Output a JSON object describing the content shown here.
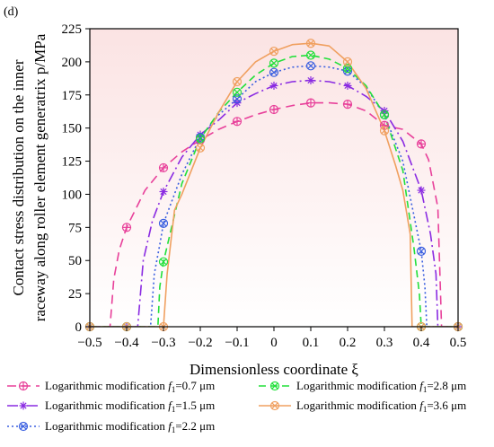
{
  "chart_data": {
    "type": "line",
    "panel_label": "(d)",
    "xlabel": "Dimensionless coordinate  ξ",
    "ylabel_line1": "Contact stress distribution on the inner",
    "ylabel_line2": "raceway along roller element generatrix  p/MPa",
    "xlim": [
      -0.5,
      0.5
    ],
    "ylim": [
      0,
      225
    ],
    "x_ticks": [
      -0.5,
      -0.4,
      -0.3,
      -0.2,
      -0.1,
      0,
      0.1,
      0.2,
      0.3,
      0.4,
      0.5
    ],
    "x_tick_labels": [
      "−0.5",
      "−0.4",
      "−0.3",
      "−0.2",
      "−0.1",
      "0",
      "0.1",
      "0.2",
      "0.3",
      "0.4",
      "0.5"
    ],
    "y_ticks": [
      0,
      25,
      50,
      75,
      100,
      125,
      150,
      175,
      200,
      225
    ],
    "y_tick_labels": [
      "0",
      "25",
      "50",
      "75",
      "100",
      "125",
      "150",
      "175",
      "200",
      "225"
    ],
    "background_gradient": [
      "#fbe3e3",
      "#ffffff"
    ],
    "series": [
      {
        "name": "Logarithmic modification f1=0.7 μm",
        "legend_prefix": "Logarithmic modification ",
        "legend_sym": "f",
        "legend_sub": "1",
        "legend_suffix": "=0.7 μm",
        "color": "#e8409a",
        "dash": "10,6",
        "marker": "circle-plus",
        "x": [
          -0.5,
          -0.445,
          -0.435,
          -0.42,
          -0.4,
          -0.35,
          -0.3,
          -0.25,
          -0.2,
          -0.15,
          -0.1,
          -0.05,
          0,
          0.05,
          0.1,
          0.15,
          0.2,
          0.25,
          0.3,
          0.35,
          0.4,
          0.42,
          0.445,
          0.455,
          0.5
        ],
        "y": [
          0,
          0,
          36,
          58,
          75,
          103,
          120,
          132,
          141,
          149,
          155,
          160,
          164,
          167,
          169,
          169,
          168,
          163,
          152,
          149,
          138,
          126,
          90,
          0,
          0
        ],
        "marker_x": [
          -0.5,
          -0.4,
          -0.3,
          -0.2,
          -0.1,
          0,
          0.1,
          0.2,
          0.3,
          0.4,
          0.5
        ],
        "marker_y": [
          0,
          75,
          120,
          141,
          155,
          164,
          169,
          168,
          152,
          138,
          0
        ]
      },
      {
        "name": "Logarithmic modification f1=1.5 μm",
        "legend_prefix": "Logarithmic modification ",
        "legend_sym": "f",
        "legend_sub": "1",
        "legend_suffix": "=1.5 μm",
        "color": "#8a2be2",
        "dash": "12,4,2,4",
        "marker": "asterisk",
        "x": [
          -0.5,
          -0.37,
          -0.355,
          -0.33,
          -0.3,
          -0.25,
          -0.2,
          -0.15,
          -0.1,
          -0.05,
          0,
          0.05,
          0.1,
          0.15,
          0.2,
          0.25,
          0.3,
          0.35,
          0.4,
          0.425,
          0.44,
          0.445,
          0.5
        ],
        "y": [
          0,
          0,
          50,
          80,
          102,
          128,
          145,
          156,
          169,
          176,
          182,
          185,
          186,
          185,
          182,
          174,
          163,
          140,
          103,
          70,
          40,
          0,
          0
        ],
        "marker_x": [
          -0.5,
          -0.4,
          -0.3,
          -0.2,
          -0.1,
          0,
          0.1,
          0.2,
          0.3,
          0.4,
          0.5
        ],
        "marker_y": [
          0,
          0,
          102,
          145,
          169,
          182,
          186,
          182,
          163,
          103,
          0
        ]
      },
      {
        "name": "Logarithmic modification f1=2.2 μm",
        "legend_prefix": "Logarithmic modification ",
        "legend_sym": "f",
        "legend_sub": "1",
        "legend_suffix": "=2.2 μm",
        "color": "#3a5fe0",
        "dash": "2,3",
        "marker": "circle-x",
        "x": [
          -0.5,
          -0.335,
          -0.325,
          -0.31,
          -0.3,
          -0.25,
          -0.2,
          -0.15,
          -0.1,
          -0.05,
          0,
          0.05,
          0.1,
          0.15,
          0.2,
          0.25,
          0.3,
          0.35,
          0.4,
          0.41,
          0.415,
          0.5
        ],
        "y": [
          0,
          0,
          40,
          62,
          78,
          115,
          143,
          160,
          172,
          185,
          192,
          196,
          197,
          196,
          193,
          181,
          160,
          125,
          57,
          30,
          0,
          0
        ],
        "marker_x": [
          -0.5,
          -0.4,
          -0.3,
          -0.2,
          -0.1,
          0,
          0.1,
          0.2,
          0.3,
          0.4,
          0.5
        ],
        "marker_y": [
          0,
          0,
          78,
          143,
          172,
          192,
          197,
          193,
          160,
          57,
          0
        ]
      },
      {
        "name": "Logarithmic modification f1=2.8 μm",
        "legend_prefix": "Logarithmic modification ",
        "legend_sym": "f",
        "legend_sub": "1",
        "legend_suffix": "=2.8 μm",
        "color": "#22e03a",
        "dash": "8,5",
        "marker": "circle-x",
        "x": [
          -0.5,
          -0.315,
          -0.31,
          -0.3,
          -0.25,
          -0.2,
          -0.15,
          -0.1,
          -0.05,
          0,
          0.05,
          0.1,
          0.15,
          0.2,
          0.25,
          0.3,
          0.35,
          0.38,
          0.395,
          0.4,
          0.5
        ],
        "y": [
          0,
          0,
          30,
          49,
          108,
          142,
          162,
          177,
          190,
          199,
          204,
          205,
          202,
          195,
          182,
          160,
          118,
          60,
          25,
          0,
          0
        ],
        "marker_x": [
          -0.5,
          -0.4,
          -0.3,
          -0.2,
          -0.1,
          0,
          0.1,
          0.2,
          0.3,
          0.4,
          0.5
        ],
        "marker_y": [
          0,
          0,
          49,
          142,
          177,
          199,
          205,
          195,
          160,
          0,
          0
        ]
      },
      {
        "name": "Logarithmic modification f1=3.6 μm",
        "legend_prefix": "Logarithmic modification ",
        "legend_sym": "f",
        "legend_sub": "1",
        "legend_suffix": "=3.6 μm",
        "color": "#f0a060",
        "dash": "",
        "marker": "circle-x",
        "x": [
          -0.5,
          -0.3,
          -0.29,
          -0.27,
          -0.25,
          -0.2,
          -0.15,
          -0.1,
          -0.05,
          0,
          0.05,
          0.1,
          0.15,
          0.2,
          0.25,
          0.3,
          0.33,
          0.35,
          0.37,
          0.375,
          0.5
        ],
        "y": [
          0,
          0,
          40,
          88,
          100,
          135,
          162,
          185,
          200,
          208,
          213,
          214,
          212,
          200,
          180,
          148,
          122,
          103,
          70,
          0,
          0
        ],
        "marker_x": [
          -0.5,
          -0.4,
          -0.3,
          -0.2,
          -0.1,
          0,
          0.1,
          0.2,
          0.3,
          0.4,
          0.5
        ],
        "marker_y": [
          0,
          0,
          0,
          135,
          185,
          208,
          214,
          200,
          148,
          0,
          0
        ]
      }
    ]
  }
}
